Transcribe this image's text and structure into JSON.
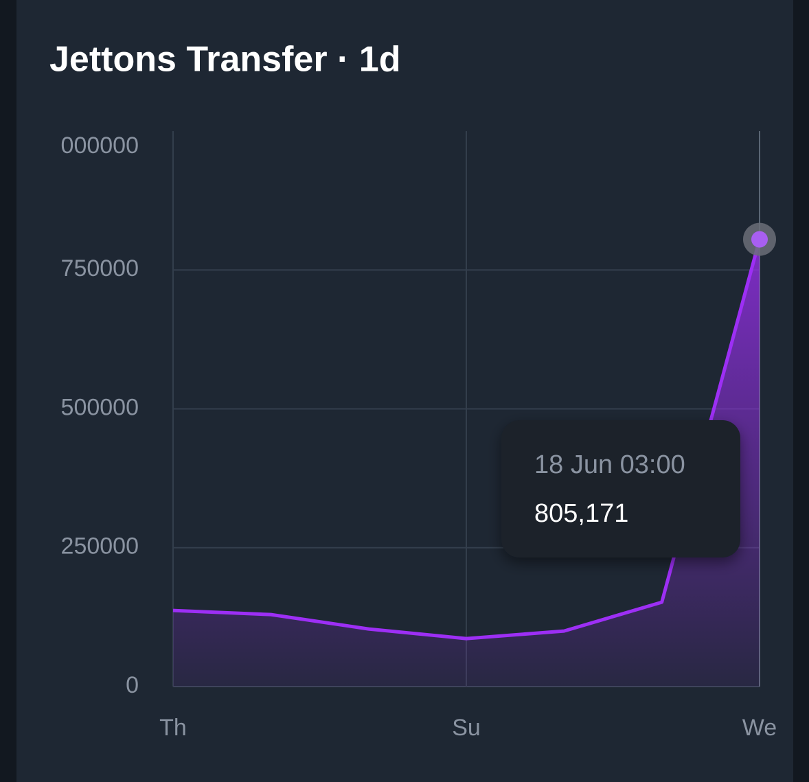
{
  "chart_data": {
    "type": "area",
    "title": "Jettons Transfer · 1d",
    "categories": [
      "Th",
      null,
      null,
      "Su",
      null,
      null,
      "We"
    ],
    "values": [
      137000,
      129600,
      103700,
      86400,
      100000,
      151900,
      805171
    ],
    "value_labels": [
      null,
      null,
      null,
      null,
      null,
      null,
      "805,171"
    ],
    "tooltip_title": "18 Jun 03:00",
    "color": "#9d2ff5",
    "ylim": [
      0,
      1000000
    ],
    "yticks": [
      0,
      250000,
      500000,
      750000,
      {
        "value": 1000000,
        "label": "000000"
      }
    ],
    "grid": true
  }
}
